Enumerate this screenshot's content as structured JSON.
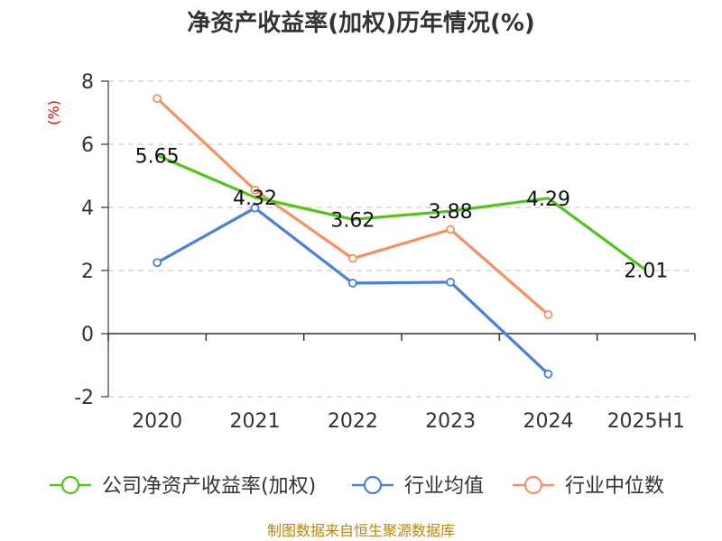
{
  "chart_data": {
    "type": "line",
    "title": "净资产收益率(加权)历年情况(%)",
    "ylabel": "(%)",
    "categories": [
      "2020",
      "2021",
      "2022",
      "2023",
      "2024",
      "2025H1"
    ],
    "ylim": [
      -2,
      8
    ],
    "yticks": [
      -2,
      0,
      2,
      4,
      6,
      8
    ],
    "grid": true,
    "legend_position": "bottom",
    "series": [
      {
        "name": "公司净资产收益率(加权)",
        "color": "#52c41a",
        "values": [
          5.65,
          4.32,
          3.62,
          3.88,
          4.29,
          2.01
        ],
        "labels": true,
        "markers": false
      },
      {
        "name": "行业均值",
        "color": "#4a7fdb",
        "values": [
          2.25,
          3.98,
          1.6,
          1.63,
          -1.28,
          null
        ],
        "labels": false,
        "markers": true
      },
      {
        "name": "行业中位数",
        "color": "#f59162",
        "values": [
          7.45,
          4.55,
          2.38,
          3.3,
          0.6,
          null
        ],
        "labels": false,
        "markers": true
      }
    ]
  },
  "source": "制图数据来自恒生聚源数据库"
}
